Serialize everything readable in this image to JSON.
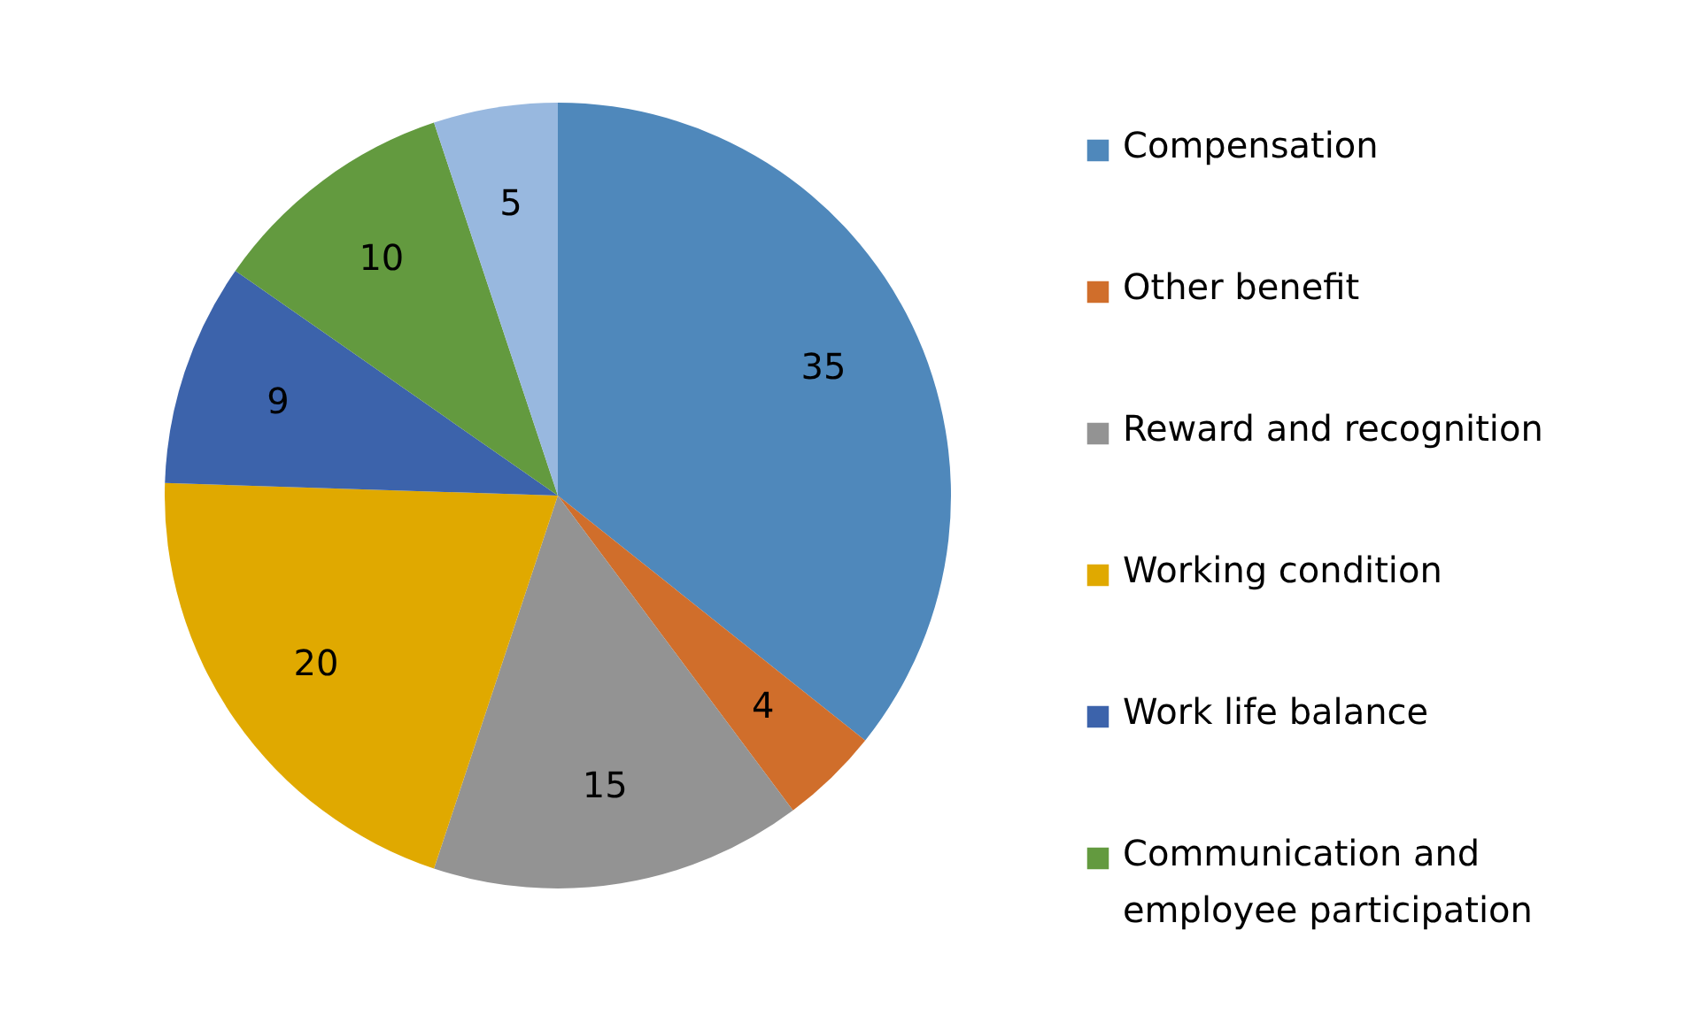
{
  "chart_data": {
    "type": "pie",
    "categories": [
      "Compensation",
      "Other benefit",
      "Reward and recognition",
      "Working condition",
      "Work life balance",
      "Communication and employee participation",
      null
    ],
    "values": [
      35,
      4,
      15,
      20,
      9,
      10,
      5
    ],
    "colors": [
      "#4f88bb",
      "#d06e2b",
      "#939393",
      "#e0a900",
      "#3c63ab",
      "#639a3f",
      "#98b8df"
    ],
    "data_labels": true,
    "legend": "right"
  }
}
